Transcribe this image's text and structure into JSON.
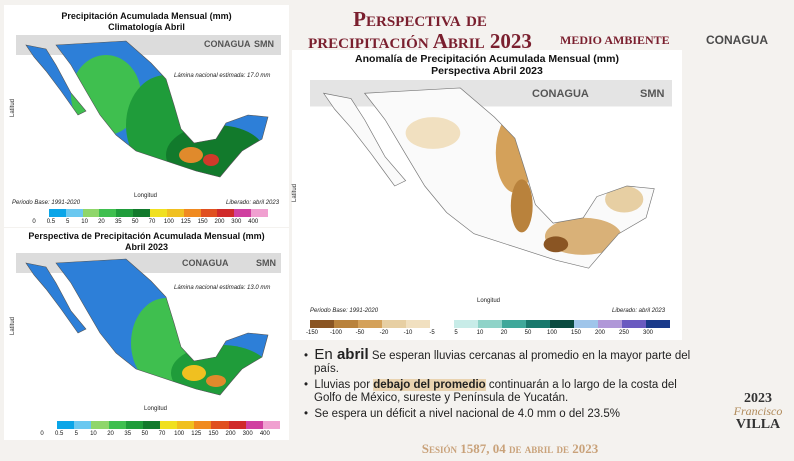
{
  "header": {
    "title_line1": "Perspectiva de",
    "title_line2": "precipitación Abril 2023",
    "logos": [
      "MEDIO AMBIENTE",
      "CONAGUA"
    ]
  },
  "panels": [
    {
      "title": "Precipitación Acumulada Mensual (mm)",
      "subtitle": "Climatología Abril",
      "logos": [
        "CONAGUA",
        "SMN"
      ],
      "note": "Lámina nacional estimada: 17.0 mm",
      "x_label": "Longitud",
      "y_label": "Latitud",
      "base": "Periodo Base: 1991-2020",
      "released": "Liberado: abril 2023",
      "legend": [
        "0",
        "0.5",
        "5",
        "10",
        "20",
        "35",
        "50",
        "70",
        "100",
        "125",
        "150",
        "200",
        "300",
        "400"
      ]
    },
    {
      "title": "Perspectiva de Precipitación Acumulada Mensual (mm)",
      "subtitle": "Abril 2023",
      "logos": [
        "CONAGUA",
        "SMN"
      ],
      "note": "Lámina nacional estimada: 13.0 mm",
      "x_label": "Longitud",
      "y_label": "Latitud",
      "legend": [
        "0",
        "0.5",
        "5",
        "10",
        "20",
        "35",
        "50",
        "70",
        "100",
        "125",
        "150",
        "200",
        "300",
        "400"
      ]
    },
    {
      "title": "Anomalía de Precipitación Acumulada Mensual (mm)",
      "subtitle": "Perspectiva Abril 2023",
      "logos": [
        "CONAGUA",
        "SMN"
      ],
      "x_label": "Longitud",
      "y_label": "Latitud",
      "base": "Periodo Base: 1991-2020",
      "released": "Liberado: abril 2023",
      "legend": [
        "-150",
        "-100",
        "-50",
        "-20",
        "-10",
        "-5",
        "5",
        "10",
        "20",
        "50",
        "100",
        "150",
        "200",
        "250",
        "300"
      ]
    }
  ],
  "bullets": [
    {
      "parts": [
        "En ",
        "abril",
        " Se esperan lluvias cercanas al promedio en la mayor parte del país."
      ]
    },
    {
      "parts": [
        "Lluvias por ",
        "debajo del promedio",
        " continuarán a lo largo de la costa del Golfo de México, sureste y Península de Yucatán."
      ]
    },
    {
      "parts": [
        "Se espera un déficit a nivel nacional de 4.0 mm o del 23.5%"
      ]
    }
  ],
  "footer": "Sesión 1587, 04 de abril de 2023",
  "badge": {
    "year": "2023",
    "name1": "Francisco",
    "name2": "VILLA"
  }
}
